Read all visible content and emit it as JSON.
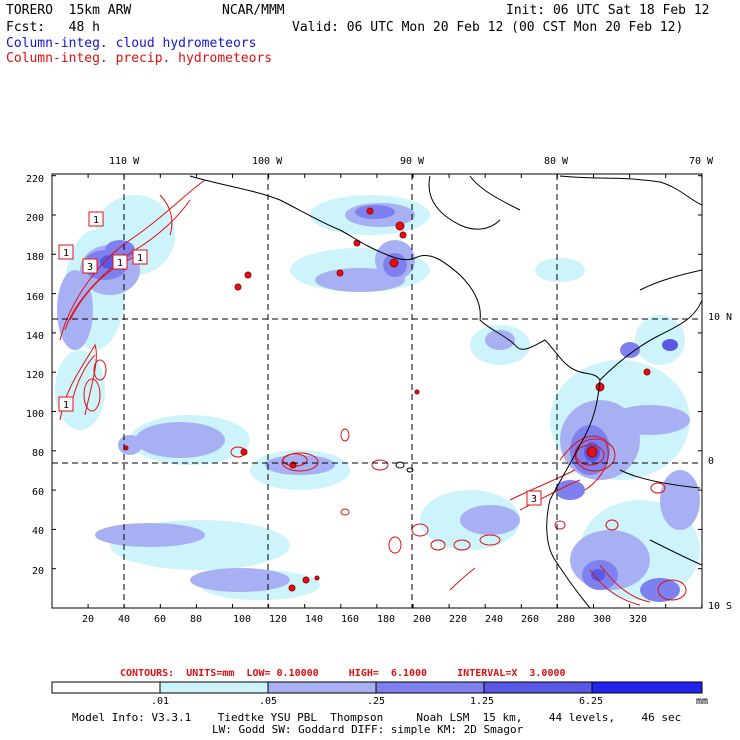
{
  "header": {
    "model": "TORERO  15km ARW",
    "org": "NCAR/MMM",
    "init": "Init: 06 UTC Sat 18 Feb 12",
    "fcst": "Fcst:   48 h",
    "valid": "Valid: 06 UTC Mon 20 Feb 12 (00 CST Mon 20 Feb 12)",
    "legend_cloud": "Column-integ. cloud hydrometeors",
    "legend_precip": "Column-integ. precip. hydrometeors"
  },
  "colors": {
    "cloud_text": "#1515d6",
    "precip_text": "#e01010",
    "shade_levels": [
      "#ffffff",
      "#ccf4fa",
      "#a8b0f4",
      "#7d80ee",
      "#5a58e6",
      "#2323ee"
    ]
  },
  "axes": {
    "x_ticks": [
      "20",
      "40",
      "60",
      "80",
      "100",
      "120",
      "140",
      "160",
      "180",
      "200",
      "220",
      "240",
      "260",
      "280",
      "300",
      "320"
    ],
    "y_ticks": [
      "20",
      "40",
      "60",
      "80",
      "100",
      "120",
      "140",
      "160",
      "180",
      "200",
      "220"
    ],
    "lon_labels": [
      "110 W",
      "100 W",
      "90 W",
      "80 W",
      "70 W"
    ],
    "lat_labels": [
      "10 N",
      "0",
      "10 S"
    ]
  },
  "contour_labels": [
    "1",
    "1",
    "3",
    "1",
    "1",
    "1",
    "3"
  ],
  "footer": {
    "contours_line": "CONTOURS:  UNITS=mm  LOW= 0.10000     HIGH=  6.1000     INTERVAL=X  3.0000",
    "scale_ticks": [
      ".01",
      ".05",
      ".25",
      "1.25",
      "6.25"
    ],
    "scale_unit": "mm",
    "model_info_1": "Model Info: V3.3.1    Tiedtke YSU PBL  Thompson     Noah LSM  15 km,    44 levels,    46 sec",
    "model_info_2": "LW: Godd SW: Goddard DIFF: simple KM: 2D Smagor"
  }
}
